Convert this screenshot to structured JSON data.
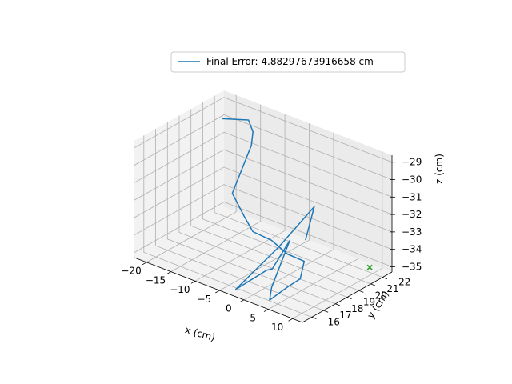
{
  "chart_data": {
    "type": "line3d",
    "title": "",
    "xlabel": "x (cm)",
    "ylabel": "y (cm)",
    "zlabel": "z (cm)",
    "xlim": [
      -22.5,
      12
    ],
    "ylim": [
      15.2,
      22.8
    ],
    "zlim": [
      -35.3,
      -28.6
    ],
    "xticks": [
      -20,
      -15,
      -10,
      -5,
      0,
      5,
      10
    ],
    "yticks": [
      16,
      17,
      18,
      19,
      20,
      21,
      22
    ],
    "zticks": [
      -35,
      -34,
      -33,
      -32,
      -31,
      -30,
      -29
    ],
    "xtick_labels": [
      "−20",
      "−15",
      "−10",
      "−5",
      "0",
      "5",
      "10"
    ],
    "ytick_labels": [
      "16",
      "17",
      "18",
      "19",
      "20",
      "21",
      "22"
    ],
    "ztick_labels": [
      "−35",
      "−34",
      "−33",
      "−32",
      "−31",
      "−30",
      "−29"
    ],
    "grid": true,
    "legend_position": "top",
    "series": [
      {
        "name": "Final Error: 4.88297673916658 cm",
        "color": "#1f77b4",
        "points": [
          [
            -20.0,
            21.6,
            -29.5
          ],
          [
            -16.5,
            22.4,
            -29.5
          ],
          [
            -13.4,
            21.5,
            -29.5
          ],
          [
            -11.8,
            20.7,
            -29.8
          ],
          [
            -12.8,
            19.5,
            -32.2
          ],
          [
            -8.7,
            18.8,
            -32.8
          ],
          [
            -3.5,
            17.4,
            -32.6
          ],
          [
            1.8,
            16.8,
            -32.3
          ],
          [
            4.8,
            16.9,
            -32.8
          ],
          [
            7.3,
            17.3,
            -33.1
          ],
          [
            7.2,
            17.0,
            -34.0
          ],
          [
            7.4,
            15.9,
            -34.0
          ],
          [
            4.3,
            15.6,
            -35.0
          ],
          [
            1.8,
            16.8,
            -35.0
          ],
          [
            -0.5,
            19.3,
            -33.5
          ],
          [
            -2.9,
            18.8,
            -35.2
          ],
          [
            0.5,
            16.9,
            -34.2
          ],
          [
            -2.9,
            15.7,
            -35.2
          ],
          [
            -0.4,
            18.3,
            -33.5
          ],
          [
            1.6,
            20.5,
            -31.8
          ],
          [
            1.0,
            20.0,
            -33.6
          ]
        ]
      }
    ],
    "markers": [
      {
        "type": "x",
        "color": "#2ca02c",
        "point": [
          11.3,
          21.2,
          -34.5
        ]
      }
    ]
  }
}
